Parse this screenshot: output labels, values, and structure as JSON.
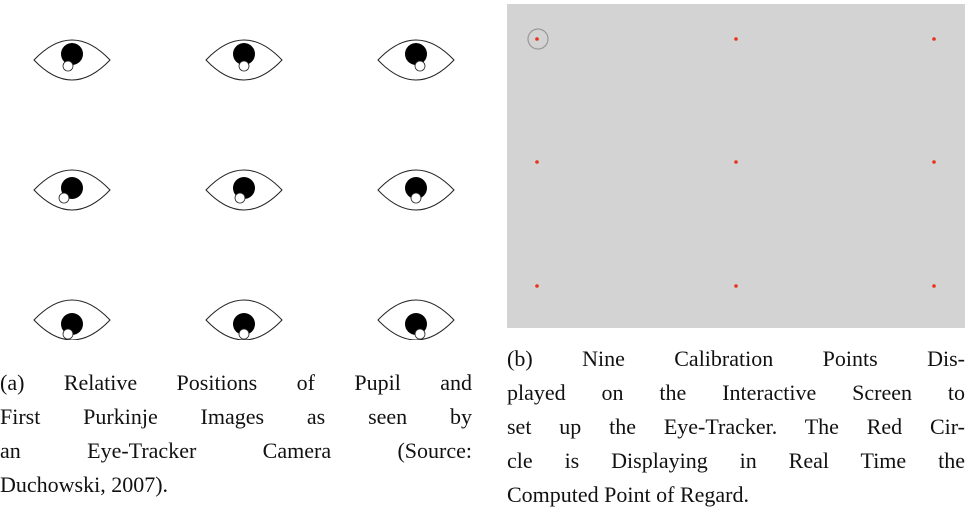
{
  "figure": {
    "subfigures": [
      {
        "caption": {
          "lines": [
            "(a) Relative Positions of Pupil and",
            "First Purkinje Images as seen by",
            "an Eye-Tracker Camera (Source:",
            "Duchowski, 2007)."
          ]
        }
      },
      {
        "caption": {
          "lines": [
            "(b) Nine Calibration Points Dis-",
            "played on the Interactive Screen to",
            "set up the Eye-Tracker. The Red Cir-",
            "cle is Displaying in Real Time the",
            "Computed Point of Regard."
          ]
        }
      }
    ]
  }
}
